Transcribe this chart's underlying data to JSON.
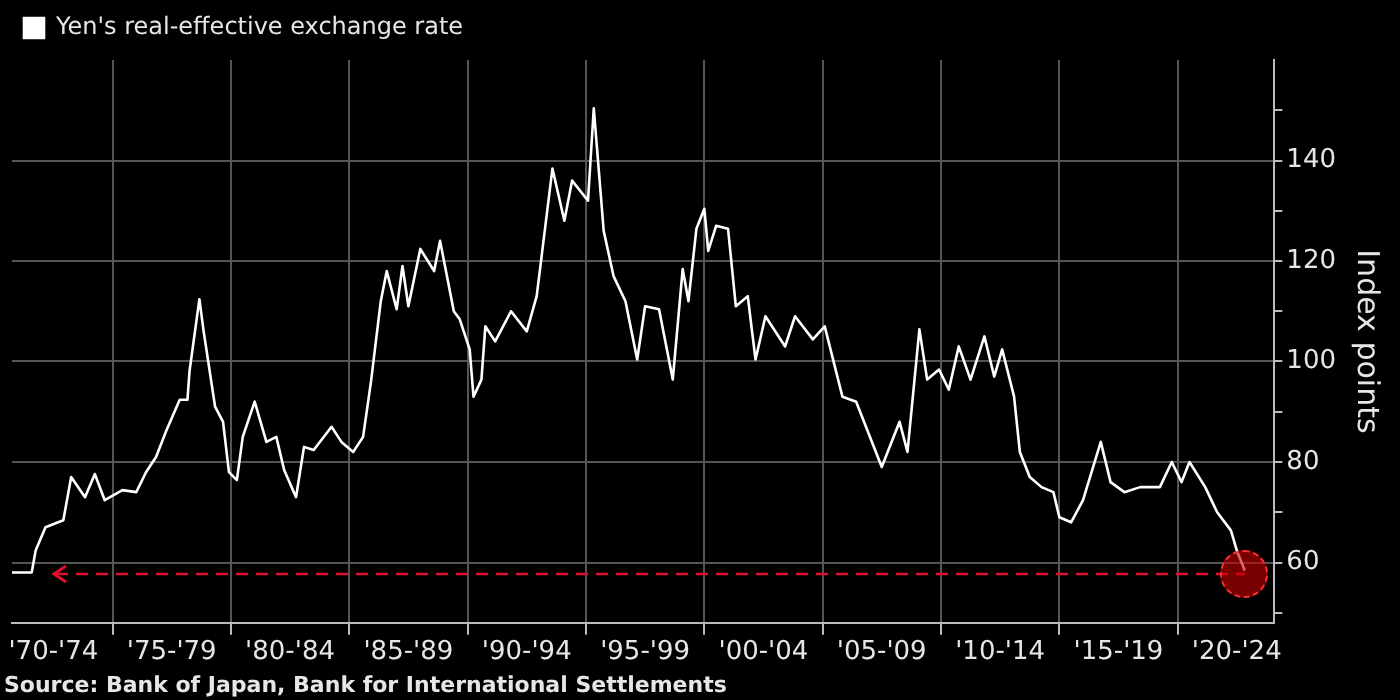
{
  "chart_data": {
    "type": "line",
    "ylabel": "Index points",
    "legend": "top left",
    "grid": true,
    "line_style": "solid",
    "marker": "none",
    "xlim": [
      "1970-10",
      "2024-02"
    ],
    "xticks": [
      {
        "value": "1972-07",
        "label": "'70-'74"
      },
      {
        "value": "1975-01",
        "label": null
      },
      {
        "value": "1977-07",
        "label": "'75-'79"
      },
      {
        "value": "1980-01",
        "label": null
      },
      {
        "value": "1982-07",
        "label": "'80-'84"
      },
      {
        "value": "1985-01",
        "label": null
      },
      {
        "value": "1987-07",
        "label": "'85-'89"
      },
      {
        "value": "1990-01",
        "label": null
      },
      {
        "value": "1992-07",
        "label": "'90-'94"
      },
      {
        "value": "1995-01",
        "label": null
      },
      {
        "value": "1997-07",
        "label": "'95-'99"
      },
      {
        "value": "2000-01",
        "label": null
      },
      {
        "value": "2002-07",
        "label": "'00-'04"
      },
      {
        "value": "2005-01",
        "label": null
      },
      {
        "value": "2007-07",
        "label": "'05-'09"
      },
      {
        "value": "2010-01",
        "label": null
      },
      {
        "value": "2012-07",
        "label": "'10-'14"
      },
      {
        "value": "2015-01",
        "label": null
      },
      {
        "value": "2017-07",
        "label": "'15-'19"
      },
      {
        "value": "2020-01",
        "label": null
      },
      {
        "value": "2022-07",
        "label": "'20-'24"
      }
    ],
    "ylim": [
      48,
      160
    ],
    "yticks": [
      {
        "value": 50,
        "label": null
      },
      60,
      {
        "value": 70,
        "label": null
      },
      80,
      {
        "value": 90,
        "label": null
      },
      100,
      {
        "value": 110,
        "label": null
      },
      120,
      {
        "value": 130,
        "label": null
      },
      140,
      {
        "value": 150,
        "label": null
      }
    ],
    "ref_lines": [
      {
        "axis": "y",
        "value": 57.7,
        "color": "#e0102a",
        "line_style": "dashed"
      }
    ],
    "annotations": [
      "Source: Bank of Japan, Bank for International Settlements"
    ],
    "x": [
      "1970-10",
      "1971-08",
      "1971-10",
      "1972-03",
      "1972-12",
      "1973-04",
      "1973-11",
      "1974-04",
      "1974-09",
      "1975-06",
      "1976-01",
      "1976-06",
      "1976-11",
      "1977-04",
      "1977-11",
      "1978-03",
      "1978-04",
      "1978-09",
      "1978-11",
      "1979-05",
      "1979-09",
      "1979-12",
      "1980-04",
      "1980-07",
      "1981-01",
      "1981-07",
      "1981-12",
      "1982-04",
      "1982-10",
      "1983-02",
      "1983-07",
      "1984-04",
      "1984-09",
      "1985-03",
      "1985-08",
      "1985-12",
      "1986-05",
      "1986-08",
      "1987-01",
      "1987-04",
      "1987-07",
      "1988-01",
      "1988-08",
      "1988-11",
      "1989-06",
      "1989-09",
      "1990-02",
      "1990-04",
      "1990-08",
      "1990-10",
      "1991-03",
      "1991-11",
      "1992-07",
      "1992-12",
      "1993-08",
      "1994-02",
      "1994-06",
      "1995-02",
      "1995-05",
      "1995-10",
      "1996-03",
      "1996-09",
      "1997-03",
      "1997-07",
      "1998-02",
      "1998-09",
      "1999-02",
      "1999-05",
      "1999-09",
      "2000-01",
      "2000-03",
      "2000-07",
      "2001-01",
      "2001-05",
      "2001-11",
      "2002-03",
      "2002-08",
      "2003-06",
      "2003-11",
      "2004-08",
      "2005-02",
      "2005-11",
      "2006-06",
      "2007-07",
      "2008-04",
      "2008-08",
      "2009-02",
      "2009-06",
      "2009-12",
      "2010-05",
      "2010-10",
      "2011-04",
      "2011-11",
      "2012-04",
      "2012-08",
      "2013-02",
      "2013-05",
      "2013-10",
      "2014-04",
      "2014-10",
      "2015-01",
      "2015-07",
      "2016-01",
      "2016-10",
      "2017-03",
      "2017-10",
      "2018-06",
      "2019-04",
      "2019-10",
      "2020-03",
      "2020-07",
      "2021-03",
      "2021-09",
      "2022-04",
      "2022-07",
      "2022-11"
    ],
    "series": [
      {
        "name": "Yen's real-effective exchange rate",
        "color": "#ffffff",
        "values": [
          58,
          58,
          62.4,
          67,
          68.4,
          77,
          73,
          77.6,
          72.4,
          74.4,
          74,
          78,
          81,
          86,
          92.4,
          92.4,
          98,
          112.4,
          106.4,
          91,
          88,
          78,
          76.4,
          85,
          92,
          84,
          85,
          78.4,
          73,
          83,
          82.4,
          87,
          84,
          82,
          85,
          96,
          112,
          118,
          110.4,
          119,
          111,
          122.4,
          118,
          124,
          110,
          108.4,
          102.4,
          93,
          96.4,
          107,
          104,
          110,
          106,
          113,
          138.4,
          128,
          136,
          132,
          150.4,
          126,
          117,
          112,
          100.4,
          111,
          110.4,
          96.4,
          118.4,
          112,
          126.4,
          130.4,
          122,
          127,
          126.4,
          111,
          113,
          100.4,
          109,
          103,
          109,
          104.4,
          107,
          93,
          92,
          79,
          88,
          82,
          106.4,
          96.4,
          98.4,
          94.4,
          103,
          96.4,
          105,
          97,
          102.4,
          93,
          82,
          77,
          75,
          74,
          69,
          68,
          72.4,
          84,
          76,
          74,
          75,
          75,
          80,
          76,
          80,
          75,
          70,
          66.4,
          62.4,
          58.4
        ]
      }
    ]
  }
}
